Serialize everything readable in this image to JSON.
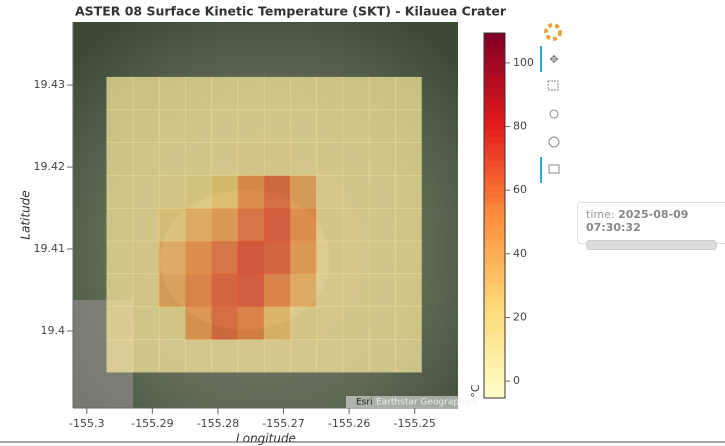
{
  "chart_data": {
    "type": "heatmap",
    "title": "ASTER 08 Surface Kinetic Temperature (SKT) - Kilauea Crater",
    "x_label": "Longitude",
    "y_label": "Latitude",
    "xlim": [
      -155.3021,
      -155.2434
    ],
    "ylim": [
      19.3906,
      19.4377
    ],
    "xticks": [
      -155.3,
      -155.29,
      -155.28,
      -155.27,
      -155.26,
      -155.25
    ],
    "yticks": [
      19.4,
      19.41,
      19.42,
      19.43
    ],
    "x": [
      -155.295,
      -155.291,
      -155.287,
      -155.283,
      -155.279,
      -155.275,
      -155.271,
      -155.267,
      -155.263,
      -155.259,
      -155.255,
      -155.251
    ],
    "y": [
      19.397,
      19.401,
      19.405,
      19.409,
      19.413,
      19.417,
      19.421,
      19.425,
      19.429
    ],
    "values": [
      [
        8,
        8,
        8,
        8,
        8,
        8,
        8,
        8,
        8,
        8,
        8,
        8
      ],
      [
        10,
        10,
        12,
        45,
        62,
        55,
        30,
        12,
        10,
        10,
        10,
        10
      ],
      [
        10,
        12,
        40,
        55,
        65,
        68,
        55,
        35,
        10,
        10,
        10,
        10
      ],
      [
        10,
        12,
        35,
        50,
        60,
        70,
        65,
        45,
        12,
        10,
        10,
        10
      ],
      [
        10,
        10,
        20,
        35,
        45,
        60,
        68,
        50,
        12,
        10,
        10,
        10
      ],
      [
        10,
        10,
        12,
        14,
        25,
        50,
        62,
        40,
        10,
        10,
        10,
        10
      ],
      [
        10,
        10,
        10,
        10,
        10,
        12,
        12,
        10,
        10,
        10,
        10,
        10
      ],
      [
        10,
        10,
        10,
        10,
        10,
        10,
        10,
        10,
        10,
        10,
        10,
        10
      ],
      [
        10,
        10,
        10,
        10,
        10,
        10,
        10,
        10,
        10,
        10,
        10,
        10
      ]
    ],
    "clim": [
      -5.3,
      109.4
    ],
    "cticks": [
      0,
      20,
      40,
      60,
      80,
      100
    ],
    "colorbar_label": "°C",
    "colormap": [
      "#ffffcc",
      "#fed976",
      "#fd8d3c",
      "#e31a1c",
      "#800026"
    ],
    "attribution": [
      "Esri",
      "Earthstar Geographics"
    ]
  },
  "widget": {
    "label": "time:",
    "value": "2025-08-09 07:30:32"
  }
}
